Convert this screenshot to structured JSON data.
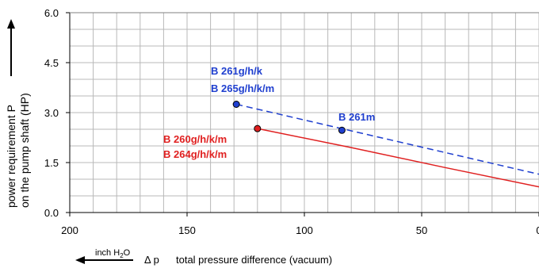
{
  "chart_data": {
    "type": "line",
    "title": "",
    "xlabel": "total pressure difference (vacuum)",
    "xlabel_symbol": "Δ p",
    "x_unit": "inch H",
    "x_unit_sub": "2",
    "x_unit_tail": "O",
    "ylabel_line1": "power requirement P",
    "ylabel_line2": "on the pump shaft (HP)",
    "xlim": [
      200,
      0
    ],
    "ylim": [
      0,
      6.0
    ],
    "x_ticks": [
      200,
      150,
      100,
      50,
      0
    ],
    "x_tick_labels": [
      "200",
      "150",
      "100",
      "50",
      "0"
    ],
    "y_ticks": [
      0,
      1.5,
      3.0,
      4.5,
      6.0
    ],
    "y_tick_labels": [
      "0.0",
      "1.5",
      "3.0",
      "4.5",
      "6.0"
    ],
    "grid": true,
    "series": [
      {
        "style": "dashed",
        "color": "#1f3fcf",
        "x": [
          129,
          0
        ],
        "y": [
          3.25,
          1.15
        ],
        "markers": [
          {
            "x": 129,
            "y": 3.25
          },
          {
            "x": 84,
            "y": 2.47
          }
        ],
        "labels": [
          "B 261g/h/k",
          "B 265g/h/k/m"
        ],
        "marker_label": "B 261m"
      },
      {
        "style": "solid",
        "color": "#e02020",
        "x": [
          120,
          80,
          40,
          0
        ],
        "y": [
          2.52,
          1.95,
          1.35,
          0.77
        ],
        "markers": [
          {
            "x": 120,
            "y": 2.52
          }
        ],
        "labels": [
          "B 260g/h/k/m",
          "B 264g/h/k/m"
        ]
      }
    ]
  }
}
